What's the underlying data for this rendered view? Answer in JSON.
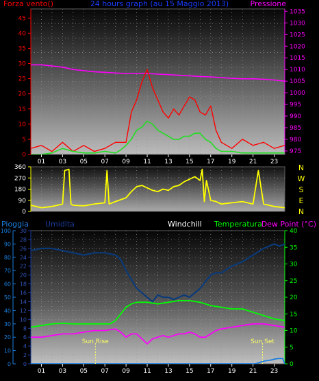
{
  "colors": {
    "background": "#000000",
    "wind_speed": "#ff0000",
    "wind_gust": "#22dd22",
    "pressure": "#ff00ff",
    "wind_direction": "#ffff00",
    "rain": "#1a7fe0",
    "humidity": "#0b3a78",
    "windchill": "#ffffff",
    "temperature": "#00ff00",
    "dew_point": "#ff00ff",
    "sun_marker": "#ffff66"
  },
  "chart_data": [
    {
      "type": "line",
      "title": "24 hours graph (au   15 Maggio 2013)",
      "left_axis_title": "Forza vento()",
      "right_axis_title": "Pressione",
      "x_ticks": [
        "01",
        "03",
        "05",
        "07",
        "09",
        "11",
        "13",
        "15",
        "17",
        "19",
        "21",
        "23"
      ],
      "y_left_ticks": [
        "0",
        "5",
        "10",
        "15",
        "20",
        "25",
        "30",
        "35",
        "40",
        "45"
      ],
      "y_left_range": [
        0,
        48
      ],
      "y_right_ticks": [
        "975",
        "980",
        "985",
        "990",
        "995",
        "1000",
        "1005",
        "1010",
        "1015",
        "1020",
        "1025",
        "1030",
        "1035"
      ],
      "y_right_range": [
        973.5,
        1036
      ],
      "series": [
        {
          "key": "pressure",
          "axis": "right",
          "x": [
            0,
            1,
            2,
            3,
            4,
            5,
            6,
            7,
            8,
            9,
            10,
            11,
            12,
            13,
            14,
            15,
            16,
            17,
            18,
            19,
            20,
            21,
            22,
            23,
            24
          ],
          "values": [
            1012,
            1012,
            1011.5,
            1011,
            1010,
            1009.5,
            1009,
            1008.8,
            1008.5,
            1008.3,
            1008.3,
            1008.3,
            1008,
            1007.8,
            1007.5,
            1007.3,
            1007,
            1006.8,
            1006.5,
            1006.2,
            1006,
            1006,
            1005.8,
            1005.5,
            1005
          ]
        },
        {
          "key": "wind_speed",
          "axis": "left",
          "x": [
            0,
            1,
            2,
            3,
            4,
            5,
            6,
            7,
            8,
            9,
            9.5,
            10,
            10.5,
            11,
            11.5,
            12,
            12.5,
            13,
            13.5,
            14,
            14.5,
            15,
            15.5,
            16,
            16.5,
            17,
            17.5,
            18,
            19,
            20,
            21,
            22,
            23,
            24
          ],
          "values": [
            2,
            3,
            1,
            4,
            1,
            3,
            1,
            2,
            4,
            4,
            14,
            18,
            24,
            28,
            22,
            18,
            14,
            12,
            15,
            13,
            16,
            19,
            18,
            14,
            13,
            16,
            8,
            4,
            2,
            5,
            3,
            4,
            2,
            3
          ]
        },
        {
          "key": "wind_gust",
          "axis": "left",
          "x": [
            0,
            1,
            2,
            3,
            4,
            5,
            6,
            7,
            8,
            8.5,
            9,
            9.5,
            10,
            10.5,
            11,
            11.5,
            12,
            12.5,
            13,
            13.5,
            14,
            14.5,
            15,
            15.5,
            16,
            16.5,
            17,
            17.5,
            18,
            19,
            20,
            21,
            22,
            23,
            24
          ],
          "values": [
            0,
            0,
            0.5,
            2,
            1,
            0.5,
            0.5,
            1,
            0.5,
            1.5,
            3,
            5,
            8,
            9,
            11,
            10,
            8,
            7,
            6,
            5,
            5,
            6,
            6,
            7,
            7,
            5,
            4,
            2,
            1,
            1,
            0.5,
            0.5,
            0.5,
            0.5,
            0.5
          ]
        }
      ]
    },
    {
      "type": "line",
      "left_axis_title": "",
      "y_ticks": [
        "0",
        "90",
        "180",
        "270",
        "360"
      ],
      "y_range": [
        0,
        360
      ],
      "compass_labels": [
        "N",
        "W",
        "S",
        "E",
        "N"
      ],
      "series": [
        {
          "key": "wind_direction",
          "x": [
            0,
            1,
            2,
            3,
            3.2,
            3.6,
            3.8,
            4,
            5,
            6,
            7,
            7.2,
            7.4,
            8,
            9,
            9.5,
            10,
            10.5,
            11,
            11.5,
            12,
            12.5,
            13,
            13.5,
            14,
            14.5,
            15,
            15.5,
            16,
            16.2,
            16.4,
            16.6,
            17,
            17.5,
            18,
            19,
            20,
            21,
            21.5,
            22,
            23,
            24
          ],
          "values": [
            50,
            30,
            40,
            60,
            330,
            340,
            60,
            50,
            45,
            60,
            70,
            330,
            60,
            80,
            110,
            160,
            200,
            210,
            190,
            170,
            160,
            180,
            170,
            200,
            210,
            240,
            260,
            280,
            250,
            340,
            80,
            250,
            90,
            80,
            60,
            70,
            80,
            60,
            330,
            60,
            40,
            30
          ]
        }
      ]
    },
    {
      "type": "line",
      "titles": {
        "rain": "Pioggia",
        "humidity": "Umidita",
        "windchill": "Windchill",
        "temperature": "Temperatura",
        "dew_point": "Dew Point (°C)"
      },
      "x_ticks": [
        "01",
        "03",
        "05",
        "07",
        "09",
        "11",
        "13",
        "15",
        "17",
        "19",
        "21",
        "23"
      ],
      "y_rain_ticks": [
        "0",
        "10",
        "20",
        "30",
        "40",
        "50",
        "60",
        "70",
        "80",
        "90",
        "100"
      ],
      "y_left_ticks": [
        "0",
        "2",
        "4",
        "6",
        "8",
        "10",
        "12",
        "14",
        "16",
        "18",
        "20",
        "22",
        "24",
        "26",
        "28",
        "30"
      ],
      "y_left_range": [
        0,
        30
      ],
      "y_right_ticks": [
        "0",
        "5",
        "10",
        "15",
        "20",
        "25",
        "30",
        "35",
        "40"
      ],
      "y_right_range": [
        0,
        40
      ],
      "annotations": [
        {
          "label": "Sun Rise",
          "x": 6.1
        },
        {
          "label": "Sun Set",
          "x": 21.9
        }
      ],
      "series": [
        {
          "key": "humidity",
          "axis": "left",
          "x": [
            0,
            1,
            2,
            3,
            4,
            5,
            6,
            7,
            8,
            8.5,
            9,
            9.5,
            10,
            10.5,
            11,
            11.5,
            12,
            12.5,
            13,
            13.5,
            14,
            14.5,
            15,
            15.5,
            16,
            16.5,
            17,
            17.5,
            18,
            19,
            20,
            21,
            22,
            23,
            23.5,
            24
          ],
          "values": [
            25.5,
            26,
            26,
            25.5,
            25,
            24.5,
            25,
            25,
            24.5,
            23.5,
            21,
            19,
            17,
            16,
            15,
            14,
            15.5,
            15,
            15,
            14.5,
            15,
            15.5,
            15,
            16,
            17,
            18.5,
            20,
            20.5,
            20.5,
            22,
            23,
            24.5,
            26,
            27,
            26.5,
            27
          ]
        },
        {
          "key": "temperature",
          "axis": "right",
          "x": [
            0,
            1,
            2,
            3,
            4,
            5,
            6,
            7,
            7.5,
            8,
            8.5,
            9,
            9.5,
            10,
            11,
            12,
            13,
            14,
            15,
            16,
            17,
            18,
            19,
            20,
            21,
            22,
            23,
            24
          ],
          "values": [
            11,
            11.5,
            12,
            12.2,
            12,
            12,
            12,
            12,
            12,
            13,
            15,
            17,
            18,
            18.5,
            18.5,
            18,
            18.5,
            19,
            19,
            18.5,
            17.5,
            17,
            16.5,
            16.5,
            15.5,
            14.5,
            13.5,
            13
          ]
        },
        {
          "key": "dew_point",
          "axis": "right",
          "x": [
            0,
            1,
            2,
            3,
            4,
            5,
            6,
            7,
            8,
            8.5,
            9,
            9.5,
            10,
            10.5,
            11,
            11.5,
            12,
            12.5,
            13,
            13.5,
            14,
            14.5,
            15,
            15.5,
            16,
            16.5,
            17,
            17.5,
            18,
            19,
            20,
            21,
            22,
            23,
            24
          ],
          "values": [
            8,
            8,
            8.5,
            9,
            9,
            9.5,
            10,
            10,
            10.5,
            9.5,
            8,
            9,
            9,
            7.5,
            6,
            7.5,
            8,
            8.5,
            8,
            8.5,
            9,
            9,
            9.5,
            9,
            8,
            8,
            9,
            10,
            10.5,
            11,
            11.5,
            12,
            12,
            11.5,
            11
          ]
        },
        {
          "key": "rain",
          "axis": "rain",
          "x": [
            0,
            21.2,
            21.6,
            22,
            22.4,
            22.8,
            23,
            23.4,
            23.8,
            24
          ],
          "values": [
            0,
            0,
            1,
            2,
            2.5,
            3,
            3.5,
            4,
            4,
            0
          ]
        }
      ]
    }
  ]
}
